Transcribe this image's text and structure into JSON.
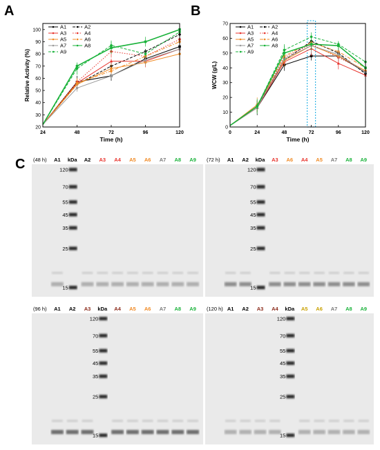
{
  "figure": {
    "panel_labels": [
      "A",
      "B",
      "C"
    ]
  },
  "chart_data": [
    {
      "panel": "A",
      "type": "line",
      "xlabel": "Time (h)",
      "ylabel": "Relative Activity (%)",
      "x": [
        24,
        48,
        72,
        96,
        120
      ],
      "xlim": [
        24,
        120
      ],
      "ylim": [
        20,
        105
      ],
      "yticks": [
        20,
        30,
        40,
        50,
        60,
        70,
        80,
        90,
        100
      ],
      "legend_position": "top-left",
      "series": [
        {
          "name": "A1",
          "values": [
            22,
            57,
            62,
            76,
            86
          ],
          "color": "#000000",
          "dash": "solid",
          "marker": "square"
        },
        {
          "name": "A2",
          "values": [
            22,
            55,
            70,
            82,
            96
          ],
          "color": "#000000",
          "dash": "dash",
          "marker": "circle"
        },
        {
          "name": "A3",
          "values": [
            22,
            56,
            74,
            74,
            84
          ],
          "color": "#e8332c",
          "dash": "solid",
          "marker": "triangle"
        },
        {
          "name": "A4",
          "values": [
            22,
            57,
            82,
            78,
            92
          ],
          "color": "#e8332c",
          "dash": "dot",
          "marker": "circle"
        },
        {
          "name": "A5",
          "values": [
            22,
            55,
            68,
            73,
            80
          ],
          "color": "#f08a24",
          "dash": "solid",
          "marker": "circle"
        },
        {
          "name": "A6",
          "values": [
            22,
            56,
            66,
            78,
            90
          ],
          "color": "#f08a24",
          "dash": "dashdot",
          "marker": "circle"
        },
        {
          "name": "A7",
          "values": [
            22,
            52,
            62,
            75,
            84
          ],
          "color": "#9a9a9a",
          "dash": "solid",
          "marker": "circle"
        },
        {
          "name": "A8",
          "values": [
            22,
            70,
            85,
            90,
            100
          ],
          "color": "#19b23a",
          "dash": "solid",
          "marker": "square"
        },
        {
          "name": "A9",
          "values": [
            22,
            68,
            87,
            80,
            98
          ],
          "color": "#19b23a",
          "dash": "dash",
          "marker": "circle"
        }
      ]
    },
    {
      "panel": "B",
      "type": "line",
      "xlabel": "Time (h)",
      "ylabel": "WCW (g/L)",
      "x": [
        0,
        24,
        48,
        72,
        96,
        120
      ],
      "xlim": [
        0,
        120
      ],
      "ylim": [
        0,
        70
      ],
      "yticks": [
        0,
        10,
        20,
        30,
        40,
        50,
        60,
        70
      ],
      "highlight_x": 72,
      "legend_position": "top-left",
      "series": [
        {
          "name": "A1",
          "values": [
            1,
            13,
            42,
            48,
            48,
            37
          ],
          "color": "#000000",
          "dash": "solid",
          "marker": "square"
        },
        {
          "name": "A2",
          "values": [
            1,
            14,
            45,
            58,
            50,
            36
          ],
          "color": "#000000",
          "dash": "dash",
          "marker": "circle"
        },
        {
          "name": "A3",
          "values": [
            1,
            13,
            44,
            53,
            43,
            35
          ],
          "color": "#e8332c",
          "dash": "solid",
          "marker": "triangle"
        },
        {
          "name": "A4",
          "values": [
            1,
            14,
            47,
            56,
            47,
            38
          ],
          "color": "#e8332c",
          "dash": "dot",
          "marker": "circle"
        },
        {
          "name": "A5",
          "values": [
            1,
            15,
            45,
            55,
            48,
            38
          ],
          "color": "#f08a24",
          "dash": "solid",
          "marker": "circle"
        },
        {
          "name": "A6",
          "values": [
            1,
            14,
            48,
            57,
            51,
            40
          ],
          "color": "#f08a24",
          "dash": "dashdot",
          "marker": "circle"
        },
        {
          "name": "A7",
          "values": [
            1,
            13,
            46,
            55,
            49,
            37
          ],
          "color": "#9a9a9a",
          "dash": "solid",
          "marker": "circle"
        },
        {
          "name": "A8",
          "values": [
            1,
            14,
            50,
            56,
            55,
            40
          ],
          "color": "#19b23a",
          "dash": "solid",
          "marker": "square"
        },
        {
          "name": "A9",
          "values": [
            1,
            14,
            52,
            61,
            56,
            44
          ],
          "color": "#19b23a",
          "dash": "dash",
          "marker": "circle"
        }
      ]
    }
  ],
  "gels": [
    {
      "time": "(48 h)",
      "lanes": [
        {
          "t": "A1",
          "c": "#000000"
        },
        {
          "t": "kDa",
          "c": "#000000"
        },
        {
          "t": "A2",
          "c": "#000000"
        },
        {
          "t": "A3",
          "c": "#e8332c"
        },
        {
          "t": "A4",
          "c": "#e8332c"
        },
        {
          "t": "A5",
          "c": "#f08a24"
        },
        {
          "t": "A6",
          "c": "#f08a24"
        },
        {
          "t": "A7",
          "c": "#777777"
        },
        {
          "t": "A8",
          "c": "#19b23a"
        },
        {
          "t": "A9",
          "c": "#19b23a"
        }
      ],
      "marker_sizes": [
        "120",
        "70",
        "55",
        "45",
        "35",
        "25",
        "15"
      ]
    },
    {
      "time": "(72 h)",
      "lanes": [
        {
          "t": "A1",
          "c": "#000000"
        },
        {
          "t": "A2",
          "c": "#000000"
        },
        {
          "t": "kDa",
          "c": "#000000"
        },
        {
          "t": "A3",
          "c": "#e8332c"
        },
        {
          "t": "A6",
          "c": "#f08a24"
        },
        {
          "t": "A4",
          "c": "#e8332c"
        },
        {
          "t": "A5",
          "c": "#f08a24"
        },
        {
          "t": "A7",
          "c": "#777777"
        },
        {
          "t": "A8",
          "c": "#19b23a"
        },
        {
          "t": "A9",
          "c": "#19b23a"
        }
      ],
      "marker_sizes": [
        "120",
        "70",
        "55",
        "45",
        "35",
        "25",
        "15"
      ]
    },
    {
      "time": "(96 h)",
      "lanes": [
        {
          "t": "A1",
          "c": "#000000"
        },
        {
          "t": "A2",
          "c": "#000000"
        },
        {
          "t": "A3",
          "c": "#8b2a1a"
        },
        {
          "t": "kDa",
          "c": "#000000"
        },
        {
          "t": "A4",
          "c": "#8b2a1a"
        },
        {
          "t": "A5",
          "c": "#f08a24"
        },
        {
          "t": "A6",
          "c": "#f08a24"
        },
        {
          "t": "A7",
          "c": "#777777"
        },
        {
          "t": "A8",
          "c": "#19b23a"
        },
        {
          "t": "A9",
          "c": "#19b23a"
        }
      ],
      "marker_sizes": [
        "120",
        "70",
        "55",
        "45",
        "35",
        "25",
        "15"
      ]
    },
    {
      "time": "(120 h)",
      "lanes": [
        {
          "t": "A1",
          "c": "#000000"
        },
        {
          "t": "A2",
          "c": "#000000"
        },
        {
          "t": "A3",
          "c": "#8b2a1a"
        },
        {
          "t": "A4",
          "c": "#8b2a1a"
        },
        {
          "t": "kDa",
          "c": "#000000"
        },
        {
          "t": "A5",
          "c": "#c8a000"
        },
        {
          "t": "A6",
          "c": "#c8a000"
        },
        {
          "t": "A7",
          "c": "#777777"
        },
        {
          "t": "A8",
          "c": "#19b23a"
        },
        {
          "t": "A9",
          "c": "#19b23a"
        }
      ],
      "marker_sizes": [
        "120",
        "70",
        "55",
        "45",
        "35",
        "25",
        "15"
      ]
    }
  ]
}
